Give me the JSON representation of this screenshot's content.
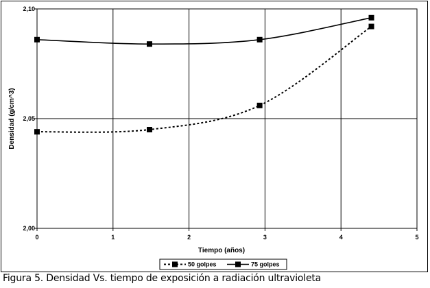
{
  "caption": "Figura 5. Densidad Vs. tiempo de exposición a radiación ultravioleta",
  "chart_data": {
    "type": "line",
    "xlabel": "Tiempo (años)",
    "ylabel": "Densidad (g/cm^3)",
    "xlim": [
      0,
      5
    ],
    "ylim": [
      2.0,
      2.1
    ],
    "x_ticks": [
      0,
      1,
      2,
      3,
      4,
      5
    ],
    "x_tick_labels": [
      "0",
      "1",
      "2",
      "3",
      "4",
      "5"
    ],
    "y_ticks": [
      2.0,
      2.05,
      2.1
    ],
    "y_tick_labels": [
      "2,00",
      "2,05",
      "2,10"
    ],
    "grid": true,
    "legend_position": "bottom",
    "series": [
      {
        "name": "50 golpes",
        "style": "dashed",
        "color": "#000000",
        "x": [
          0,
          1.48,
          2.93,
          4.4
        ],
        "y": [
          2.044,
          2.045,
          2.056,
          2.092
        ]
      },
      {
        "name": "75 golpes",
        "style": "solid",
        "color": "#000000",
        "x": [
          0,
          1.48,
          2.93,
          4.4
        ],
        "y": [
          2.086,
          2.084,
          2.086,
          2.096
        ]
      }
    ]
  }
}
